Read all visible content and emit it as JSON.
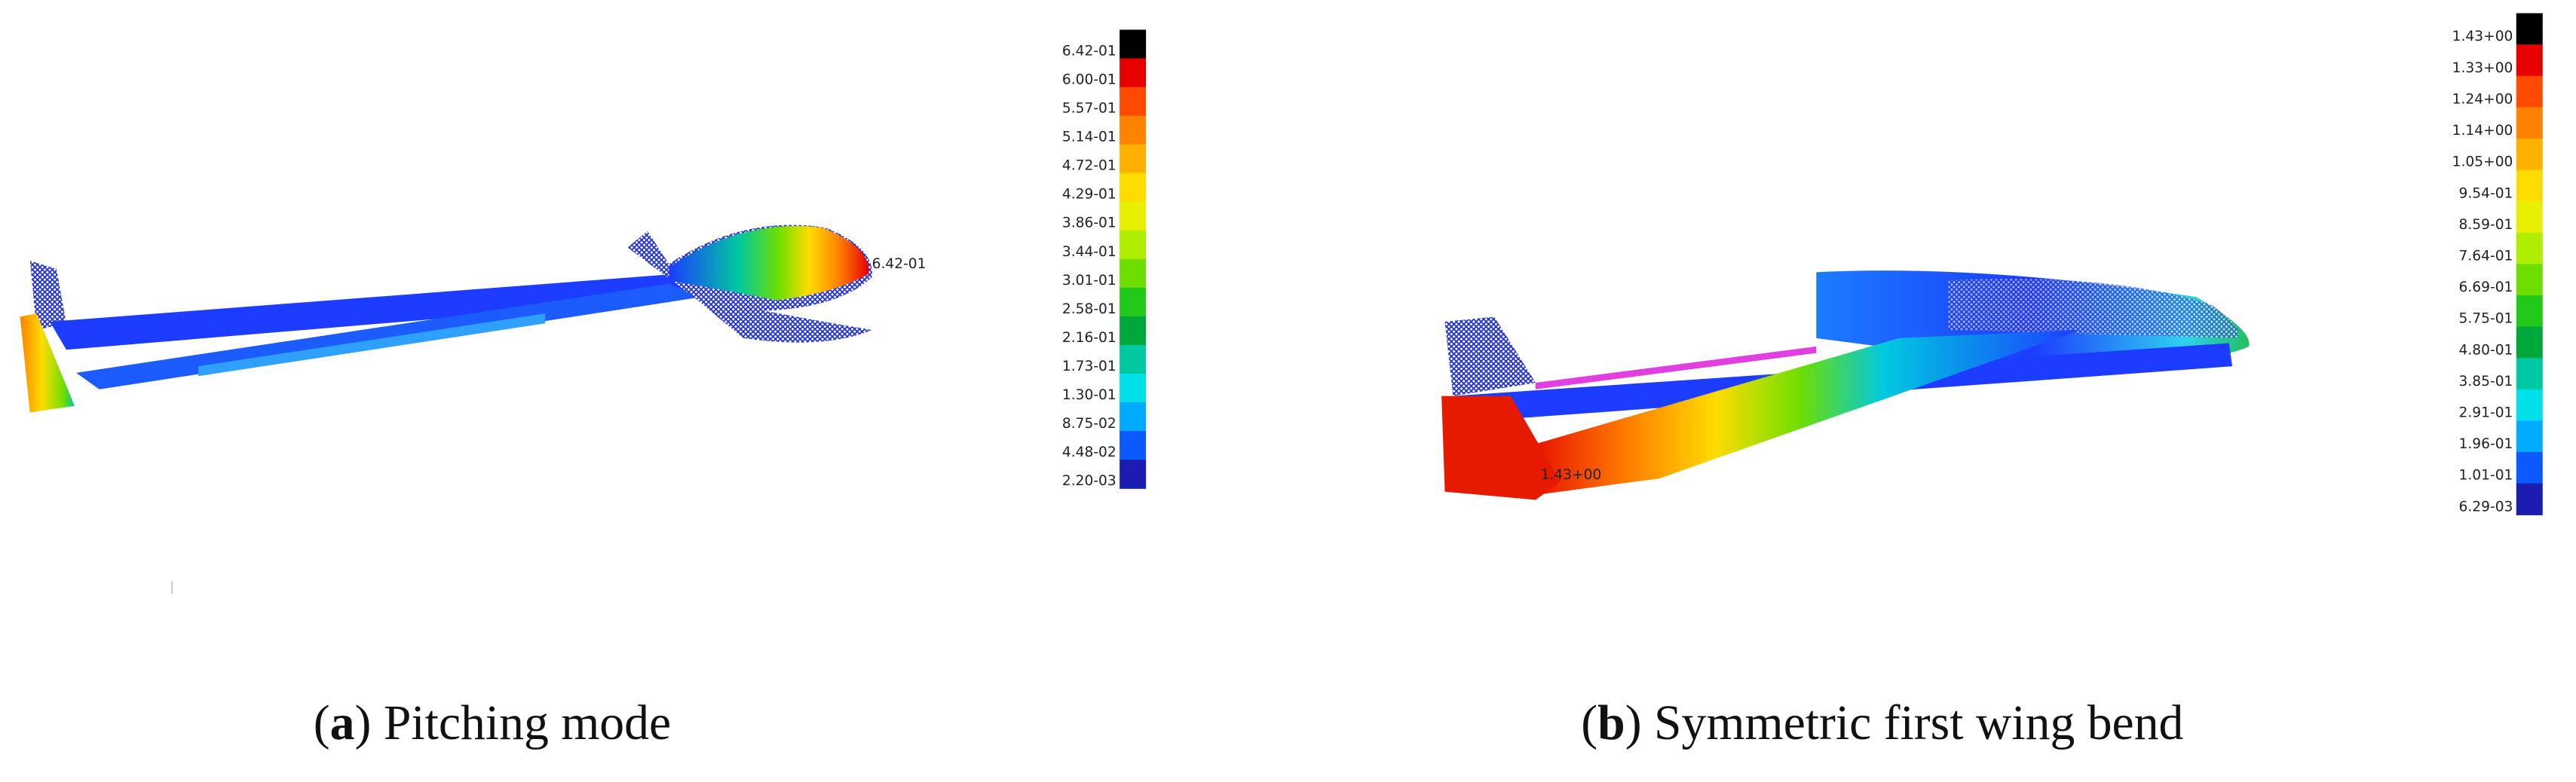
{
  "panels": [
    {
      "tag": [
        "(",
        "a",
        ")"
      ],
      "caption": "Pitching mode",
      "annotation": "6.42-01",
      "legend": {
        "labels": [
          "6.42-01",
          "6.00-01",
          "5.57-01",
          "5.14-01",
          "4.72-01",
          "4.29-01",
          "3.86-01",
          "3.44-01",
          "3.01-01",
          "2.58-01",
          "2.16-01",
          "1.73-01",
          "1.30-01",
          "8.75-02",
          "4.48-02",
          "2.20-03"
        ],
        "colors": [
          "#000000",
          "#e60000",
          "#ff4a00",
          "#ff8200",
          "#ffb000",
          "#ffdc00",
          "#e8f000",
          "#b0ee00",
          "#6ede00",
          "#22c81a",
          "#00a83c",
          "#00c8a0",
          "#00e0e8",
          "#00aaff",
          "#0a5aff",
          "#1c1cb0"
        ]
      }
    },
    {
      "tag": [
        "(",
        "b",
        ")"
      ],
      "caption": "Symmetric first wing bend",
      "annotation": "1.43+00",
      "legend": {
        "labels": [
          "1.43+00",
          "1.33+00",
          "1.24+00",
          "1.14+00",
          "1.05+00",
          "9.54-01",
          "8.59-01",
          "7.64-01",
          "6.69-01",
          "5.75-01",
          "4.80-01",
          "3.85-01",
          "2.91-01",
          "1.96-01",
          "1.01-01",
          "6.29-03"
        ],
        "colors": [
          "#000000",
          "#e60000",
          "#ff4a00",
          "#ff8200",
          "#ffb000",
          "#ffdc00",
          "#e8f000",
          "#b0ee00",
          "#6ede00",
          "#22c81a",
          "#00a83c",
          "#00c8a0",
          "#00e0e8",
          "#00aaff",
          "#0a5aff",
          "#1c1cb0"
        ]
      }
    }
  ]
}
